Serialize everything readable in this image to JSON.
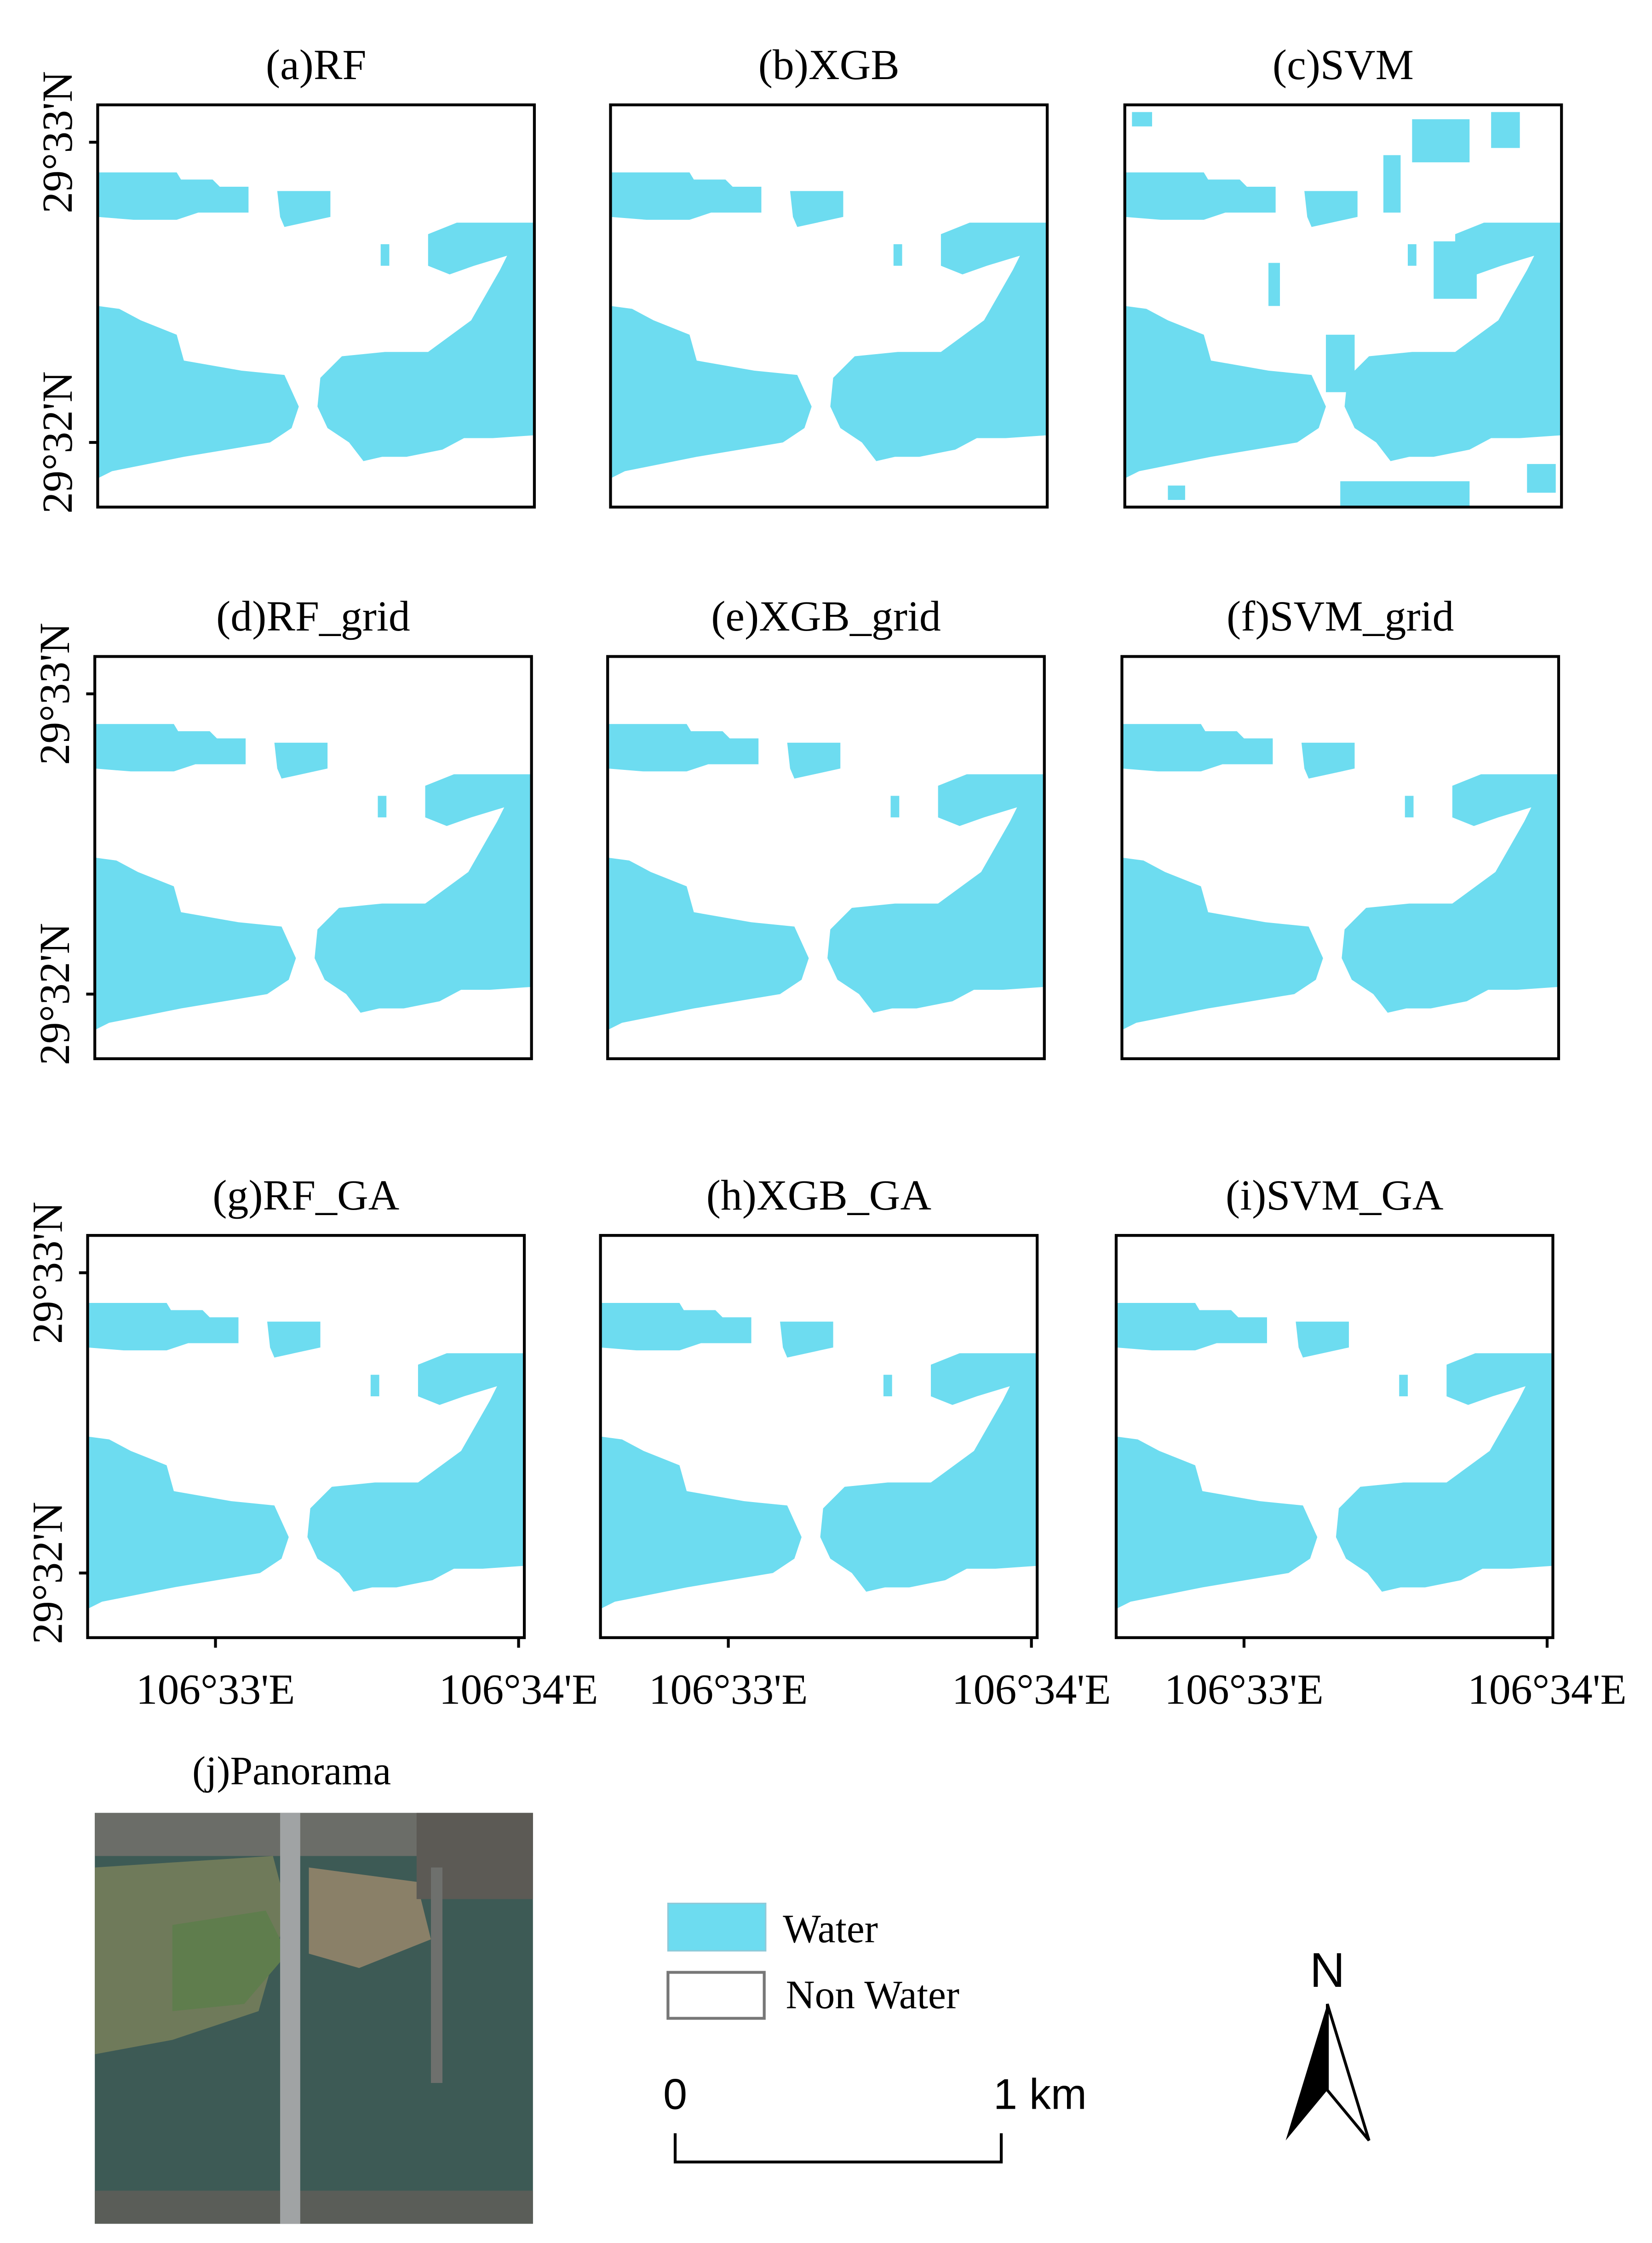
{
  "panels": [
    {
      "title": "(a)RF"
    },
    {
      "title": "(b)XGB"
    },
    {
      "title": "(c)SVM"
    },
    {
      "title": "(d)RF_grid"
    },
    {
      "title": "(e)XGB_grid"
    },
    {
      "title": "(f)SVM_grid"
    },
    {
      "title": "(g)RF_GA"
    },
    {
      "title": "(h)XGB_GA"
    },
    {
      "title": "(i)SVM_GA"
    }
  ],
  "y_axis_labels": [
    "29°33'N",
    "29°32'N"
  ],
  "x_axis_labels": [
    "106°33'E",
    "106°34'E"
  ],
  "panorama": {
    "title": "(j)Panorama"
  },
  "legend": [
    {
      "label": "Water"
    },
    {
      "label": "Non Water"
    }
  ],
  "scale_bar": {
    "start": "0",
    "end": "1 km"
  },
  "north_arrow": {
    "label": "N"
  }
}
